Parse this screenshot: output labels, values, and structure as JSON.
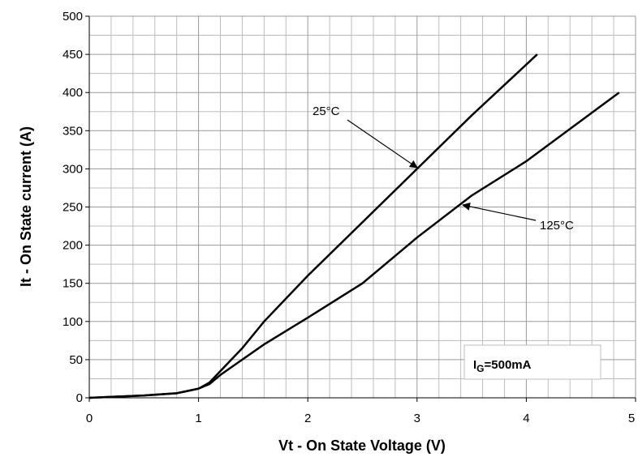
{
  "chart_data": {
    "type": "line",
    "xlabel": "Vt - On State Voltage (V)",
    "ylabel": "It - On State current (A)",
    "xlim": [
      0,
      5
    ],
    "ylim": [
      0,
      500
    ],
    "xticks": [
      0,
      1,
      2,
      3,
      4,
      5
    ],
    "yticks": [
      0,
      50,
      100,
      150,
      200,
      250,
      300,
      350,
      400,
      450,
      500
    ],
    "xminorticks": [
      0.2,
      0.4,
      0.6,
      0.8,
      1.2,
      1.4,
      1.6,
      1.8,
      2.2,
      2.4,
      2.6,
      2.8,
      3.2,
      3.4,
      3.6,
      3.8,
      4.2,
      4.4,
      4.6,
      4.8
    ],
    "yminorticks": [
      25,
      75,
      125,
      175,
      225,
      275,
      325,
      375,
      425,
      475
    ],
    "grid": true,
    "series": [
      {
        "name": "25°C",
        "color": "#000000",
        "x": [
          0,
          0.5,
          0.8,
          1.0,
          1.1,
          1.2,
          1.4,
          1.6,
          2.0,
          2.5,
          3.0,
          3.5,
          4.1
        ],
        "values": [
          0,
          3,
          6,
          12,
          20,
          35,
          65,
          100,
          160,
          230,
          300,
          370,
          450
        ]
      },
      {
        "name": "125°C",
        "color": "#000000",
        "x": [
          0,
          0.5,
          0.8,
          1.0,
          1.1,
          1.2,
          1.4,
          1.6,
          2.0,
          2.5,
          3.0,
          3.5,
          4.0,
          4.85
        ],
        "values": [
          0,
          3,
          6,
          12,
          18,
          30,
          50,
          70,
          105,
          150,
          210,
          265,
          310,
          400
        ]
      }
    ],
    "condition": {
      "main": "I",
      "subscript": "G",
      "suffix": "=500mA"
    }
  }
}
